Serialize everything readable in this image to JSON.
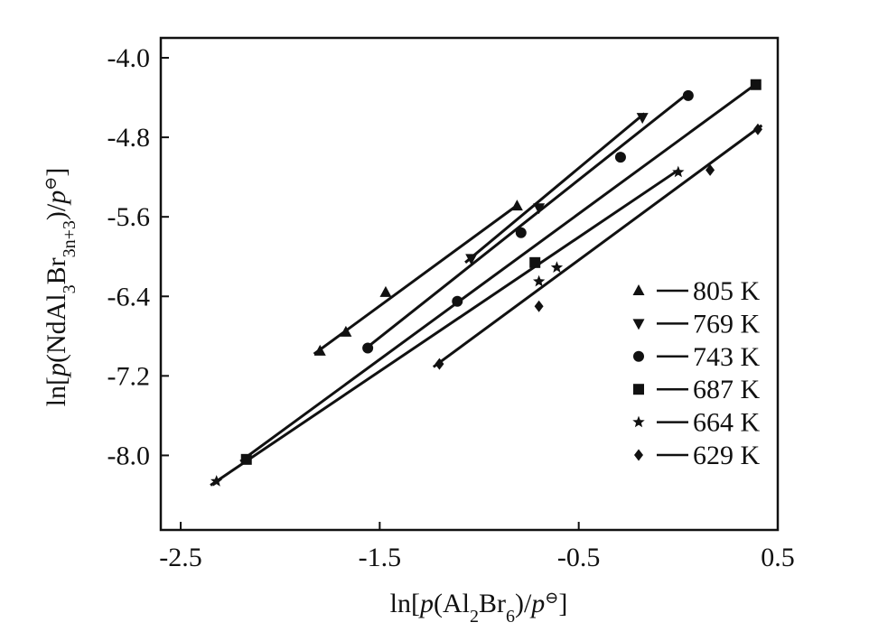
{
  "chart_data": {
    "type": "line",
    "xlabel_parts": {
      "pre": "ln[",
      "p": "p",
      "open": "(Al",
      "sub1": "2",
      "mid": "Br",
      "sub2": "6",
      "close": ")/",
      "p0": "p",
      "sup": "⊖",
      "end": "]"
    },
    "ylabel_parts": {
      "pre": "ln[",
      "p": "p",
      "open": "(NdAl",
      "sub1": "3",
      "mid": "Br",
      "sub2": "3n+3",
      "close": ")/",
      "p0": "p",
      "sup": "⊖",
      "end": "]"
    },
    "xlim": [
      -2.6,
      0.5
    ],
    "ylim": [
      -8.75,
      -3.8
    ],
    "xticks": [
      -2.5,
      -1.5,
      -0.5,
      0.5
    ],
    "xtick_labels": [
      "-2.5",
      "-1.5",
      "-0.5",
      "0.5"
    ],
    "yticks": [
      -4.0,
      -4.8,
      -5.6,
      -6.4,
      -7.2,
      -8.0
    ],
    "ytick_labels": [
      "-4.0",
      "-4.8",
      "-5.6",
      "-6.4",
      "-7.2",
      "-8.0"
    ],
    "legend_position": "right",
    "series": [
      {
        "name": "805 K",
        "marker": "triangle-up",
        "points": [
          [
            -1.8,
            -6.95
          ],
          [
            -1.67,
            -6.76
          ],
          [
            -1.47,
            -6.36
          ],
          [
            -0.81,
            -5.49
          ]
        ],
        "line": [
          [
            -1.83,
            -6.98
          ],
          [
            -0.8,
            -5.47
          ]
        ]
      },
      {
        "name": "769 K",
        "marker": "triangle-down",
        "points": [
          [
            -1.04,
            -6.02
          ],
          [
            -0.7,
            -5.51
          ],
          [
            -0.18,
            -4.6
          ]
        ],
        "line": [
          [
            -1.07,
            -6.06
          ],
          [
            -0.17,
            -4.56
          ]
        ]
      },
      {
        "name": "743 K",
        "marker": "circle",
        "points": [
          [
            -1.56,
            -6.92
          ],
          [
            -1.11,
            -6.45
          ],
          [
            -0.79,
            -5.76
          ],
          [
            -0.29,
            -5.0
          ],
          [
            0.05,
            -4.38
          ]
        ],
        "line": [
          [
            -1.58,
            -6.94
          ],
          [
            0.06,
            -4.34
          ]
        ]
      },
      {
        "name": "687 K",
        "marker": "square",
        "points": [
          [
            -2.17,
            -8.04
          ],
          [
            -0.72,
            -6.06
          ],
          [
            0.39,
            -4.27
          ]
        ],
        "line": [
          [
            -2.2,
            -8.06
          ],
          [
            0.4,
            -4.25
          ]
        ]
      },
      {
        "name": "664 K",
        "marker": "star",
        "points": [
          [
            -2.32,
            -8.26
          ],
          [
            -0.7,
            -6.25
          ],
          [
            -0.61,
            -6.11
          ],
          [
            0.0,
            -5.15
          ]
        ],
        "line": [
          [
            -2.35,
            -8.3
          ],
          [
            0.0,
            -5.13
          ]
        ]
      },
      {
        "name": "629 K",
        "marker": "diamond",
        "points": [
          [
            -1.2,
            -7.08
          ],
          [
            -0.7,
            -6.5
          ],
          [
            0.16,
            -5.13
          ],
          [
            0.4,
            -4.72
          ]
        ],
        "line": [
          [
            -1.23,
            -7.11
          ],
          [
            0.42,
            -4.68
          ]
        ]
      }
    ]
  }
}
